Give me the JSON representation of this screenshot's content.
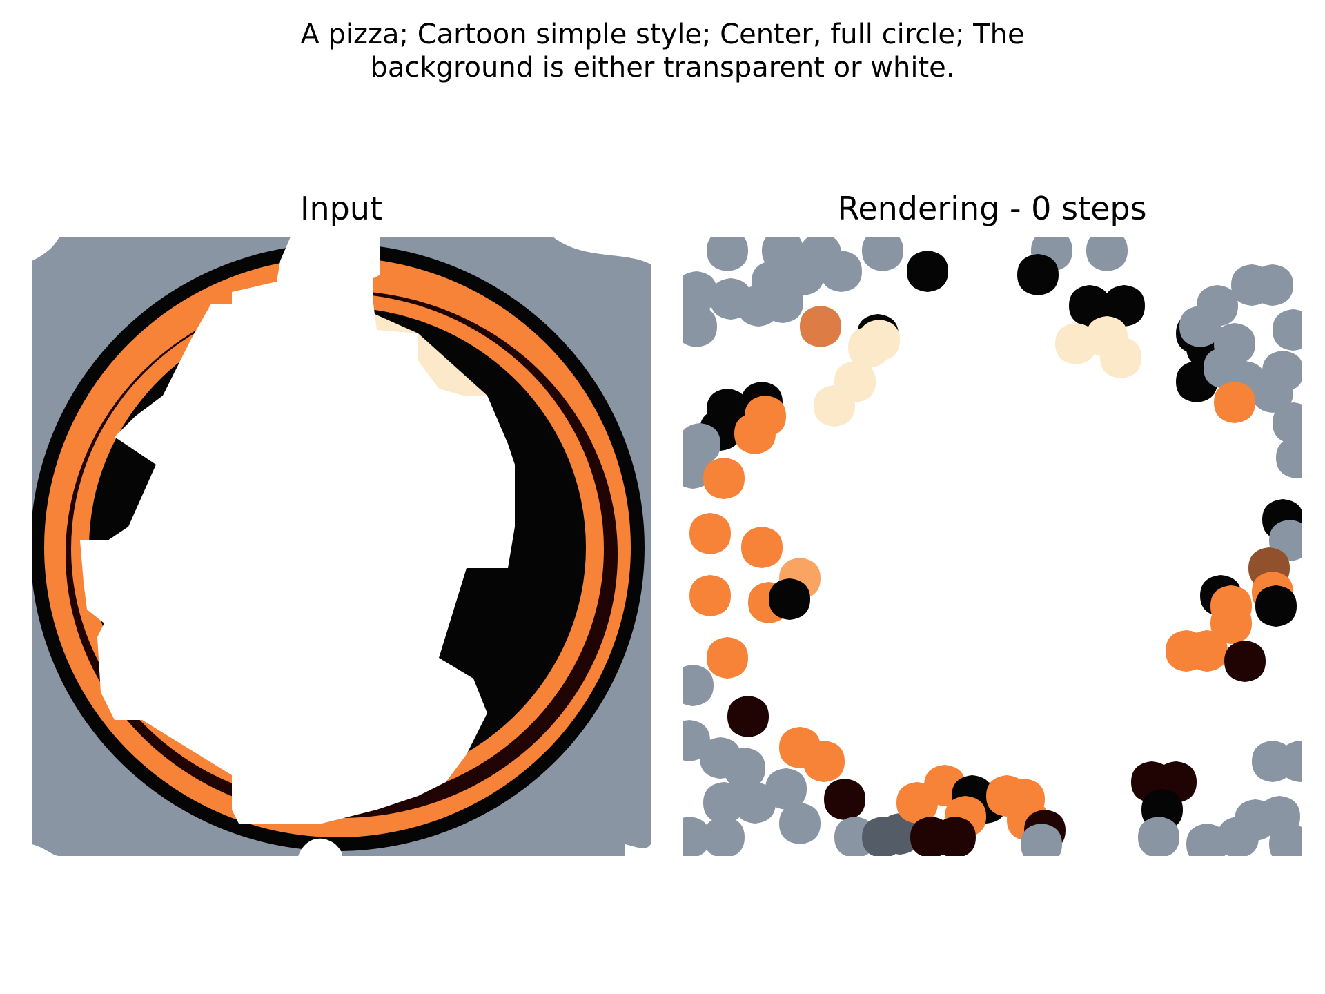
{
  "figure": {
    "caption_lines": [
      "A pizza; Cartoon simple style; Center, full circle; The",
      "background is either transparent or white."
    ]
  },
  "panels": {
    "input": {
      "title": "Input"
    },
    "rendering": {
      "title": "Rendering - 0 steps"
    }
  },
  "colors": {
    "background_gray": "#8a95a3",
    "orange": "#f68337",
    "cream": "#fbe9c9",
    "black": "#050505",
    "dark_brown": "#200303",
    "brown": "#91512d",
    "rust": "#dd7c44",
    "light_orange": "#f9a462",
    "slate": "#545c68",
    "white": "#ffffff"
  }
}
